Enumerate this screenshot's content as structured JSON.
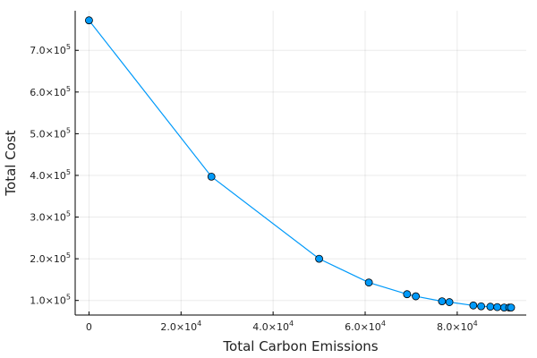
{
  "chart_data": {
    "type": "line",
    "title": "",
    "xlabel": "Total Carbon Emissions",
    "ylabel": "Total Cost",
    "xlim": [
      -3000,
      95000
    ],
    "ylim": [
      65000,
      795000
    ],
    "grid": true,
    "legend": "none",
    "markers": true,
    "xticks": [
      {
        "value": 0,
        "mantissa": "0",
        "exp": ""
      },
      {
        "value": 20000,
        "mantissa": "2.0×10",
        "exp": "4"
      },
      {
        "value": 40000,
        "mantissa": "4.0×10",
        "exp": "4"
      },
      {
        "value": 60000,
        "mantissa": "6.0×10",
        "exp": "4"
      },
      {
        "value": 80000,
        "mantissa": "8.0×10",
        "exp": "4"
      }
    ],
    "yticks": [
      {
        "value": 100000,
        "mantissa": "1.0×10",
        "exp": "5"
      },
      {
        "value": 200000,
        "mantissa": "2.0×10",
        "exp": "5"
      },
      {
        "value": 300000,
        "mantissa": "3.0×10",
        "exp": "5"
      },
      {
        "value": 400000,
        "mantissa": "4.0×10",
        "exp": "5"
      },
      {
        "value": 500000,
        "mantissa": "5.0×10",
        "exp": "5"
      },
      {
        "value": 600000,
        "mantissa": "6.0×10",
        "exp": "5"
      },
      {
        "value": 700000,
        "mantissa": "7.0×10",
        "exp": "5"
      }
    ],
    "colors": {
      "series": "#009AFA",
      "marker_edge": "#000000"
    },
    "series": [
      {
        "x": [
          0,
          26600,
          50000,
          60800,
          69100,
          71000,
          76700,
          78300,
          83500,
          85200,
          87200,
          88700,
          90200,
          91300,
          91700
        ],
        "y": [
          772000,
          397000,
          200000,
          143000,
          115000,
          110000,
          98000,
          96000,
          88000,
          86000,
          85000,
          84000,
          83000,
          83000,
          83000
        ]
      }
    ]
  }
}
